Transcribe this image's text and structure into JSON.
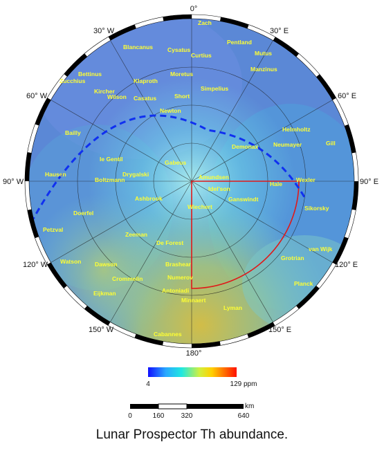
{
  "degree_labels": {
    "top": "0°",
    "bottom": "180°",
    "left": "90° W",
    "right": "90° E",
    "w30": "30° W",
    "e30": "30° E",
    "w60": "60° W",
    "e60": "60° E",
    "w120": "120° W",
    "e120": "120° E",
    "w150": "150° W",
    "e150": "150° E"
  },
  "craters": [
    "Zach",
    "Pentland",
    "Blancanus",
    "Cysatus",
    "Curtius",
    "Mutus",
    "Bettinus",
    "Zucchius",
    "Klaproth",
    "Moretus",
    "Manzinus",
    "Kircher",
    "Wilson",
    "Casatus",
    "Short",
    "Simpelius",
    "Newton",
    "Helmholtz",
    "Bailly",
    "Neumayer",
    "Gill",
    "Demonax",
    "le Gentil",
    "Gabeus",
    "Drygalski",
    "Amundsen",
    "Hausen",
    "Boltzmann",
    "Wexler",
    "Hale",
    "Idel'son",
    "Ashbrook",
    "Ganswindt",
    "Wiechert",
    "Doerfel",
    "Sikorsky",
    "Petzval",
    "Zeeman",
    "De Forest",
    "van Wijk",
    "Watson",
    "Dawson",
    "Brashear",
    "Grotrian",
    "Numerov",
    "Crommelin",
    "Planck",
    "Eijkman",
    "Antoniadi",
    "Minnaert",
    "Lyman",
    "Cabannes"
  ],
  "colorbar": {
    "min_label": "4",
    "max_label": "129 ppm",
    "colors": [
      "#1010ff",
      "#2aa8ff",
      "#20e8e0",
      "#d0f040",
      "#ffd000",
      "#ff7000",
      "#ff1000"
    ]
  },
  "scalebar": {
    "unit": "km",
    "ticks": [
      "0",
      "160",
      "320",
      "640"
    ]
  },
  "caption": "Lunar Prospector Th abundance."
}
